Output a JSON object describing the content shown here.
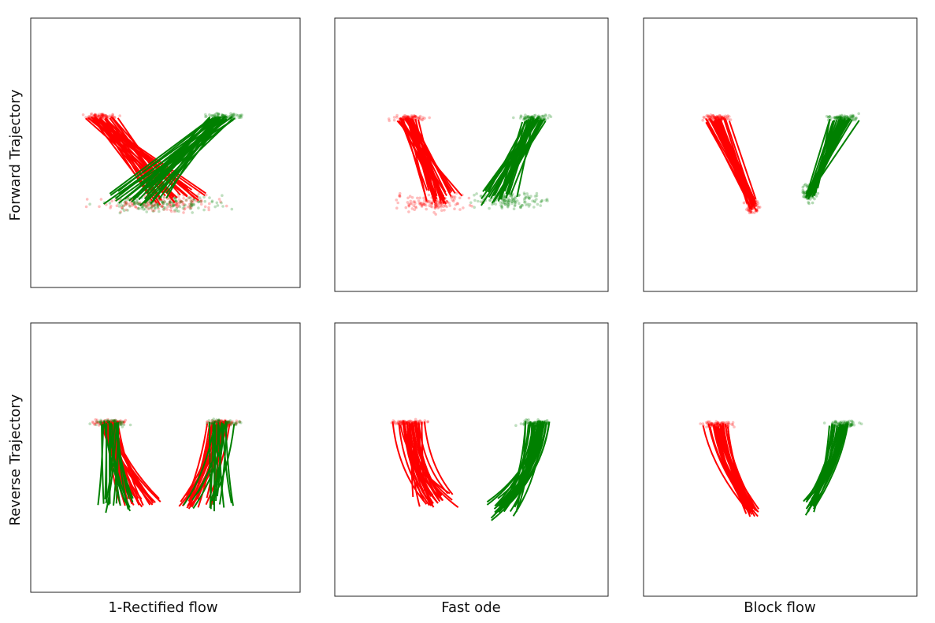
{
  "chart_data": {
    "type": "scatter",
    "row_labels": [
      "Forward Trajectory",
      "Reverse Trajectory"
    ],
    "column_labels": [
      "1-Rectified flow",
      "Fast ode",
      "Block flow"
    ],
    "colors": {
      "red": "#ff0000",
      "green": "#008000"
    },
    "panels": [
      {
        "row": 0,
        "col": 0
      },
      {
        "row": 0,
        "col": 1
      },
      {
        "row": 0,
        "col": 2
      },
      {
        "row": 1,
        "col": 0
      },
      {
        "row": 1,
        "col": 1
      },
      {
        "row": 1,
        "col": 2
      }
    ]
  }
}
